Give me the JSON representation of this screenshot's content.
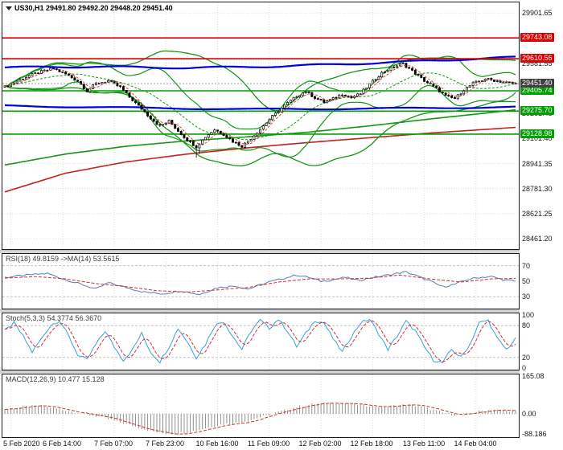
{
  "header": {
    "title": "US30,H1 29491.80 29492.20 29448.20 29451.40"
  },
  "time_axis": {
    "labels": [
      "5 Feb 2020",
      "6 Feb 14:00",
      "7 Feb 07:00",
      "7 Feb 23:00",
      "10 Feb 16:00",
      "11 Feb 09:00",
      "12 Feb 02:00",
      "12 Feb 18:00",
      "13 Feb 11:00",
      "14 Feb 04:00"
    ],
    "tick_bars": [
      2,
      19,
      36,
      53,
      70,
      87,
      104,
      121,
      138,
      155
    ]
  },
  "chart_data": {
    "type": "candlestick",
    "title": "US30,H1",
    "symbol": "US30",
    "timeframe": "H1",
    "ohlc": {
      "open": 29491.8,
      "high": 29492.2,
      "low": 29448.2,
      "close": 29451.4
    },
    "bars": 168,
    "legend_position": "none",
    "grid": true,
    "main": {
      "ylim": [
        28395,
        29970
      ],
      "yticks": [
        29901.65,
        29741.6,
        29581.55,
        29421.5,
        29261.45,
        29101.4,
        28941.35,
        28781.3,
        28621.25,
        28461.2
      ],
      "levels": [
        {
          "value": 29743.08,
          "color": "#e00000",
          "type": "resistance"
        },
        {
          "value": 29610.56,
          "color": "#e00000",
          "type": "resistance"
        },
        {
          "value": 29405.74,
          "color": "#00a000",
          "type": "support"
        },
        {
          "value": 29275.7,
          "color": "#00a000",
          "type": "support"
        },
        {
          "value": 29128.98,
          "color": "#00a000",
          "type": "support"
        }
      ],
      "current_price": 29451.4,
      "price_path": [
        [
          0,
          29430
        ],
        [
          4,
          29468
        ],
        [
          8,
          29502
        ],
        [
          12,
          29528
        ],
        [
          16,
          29548
        ],
        [
          20,
          29512
        ],
        [
          24,
          29468
        ],
        [
          27,
          29405
        ],
        [
          30,
          29452
        ],
        [
          34,
          29470
        ],
        [
          38,
          29428
        ],
        [
          42,
          29345
        ],
        [
          45,
          29290
        ],
        [
          48,
          29232
        ],
        [
          51,
          29180
        ],
        [
          54,
          29212
        ],
        [
          57,
          29150
        ],
        [
          60,
          29092
        ],
        [
          63,
          29048
        ],
        [
          66,
          29112
        ],
        [
          69,
          29158
        ],
        [
          72,
          29128
        ],
        [
          75,
          29082
        ],
        [
          78,
          29052
        ],
        [
          81,
          29102
        ],
        [
          84,
          29162
        ],
        [
          88,
          29242
        ],
        [
          92,
          29312
        ],
        [
          96,
          29372
        ],
        [
          99,
          29402
        ],
        [
          102,
          29362
        ],
        [
          105,
          29332
        ],
        [
          108,
          29356
        ],
        [
          111,
          29386
        ],
        [
          114,
          29362
        ],
        [
          117,
          29388
        ],
        [
          120,
          29448
        ],
        [
          124,
          29520
        ],
        [
          128,
          29560
        ],
        [
          131,
          29578
        ],
        [
          134,
          29532
        ],
        [
          138,
          29470
        ],
        [
          142,
          29420
        ],
        [
          145,
          29372
        ],
        [
          148,
          29356
        ],
        [
          151,
          29412
        ],
        [
          154,
          29452
        ],
        [
          158,
          29482
        ],
        [
          161,
          29472
        ],
        [
          164,
          29462
        ],
        [
          168,
          29451
        ]
      ],
      "blue_ma_upper": [
        [
          0,
          29555
        ],
        [
          30,
          29560
        ],
        [
          60,
          29552
        ],
        [
          90,
          29562
        ],
        [
          120,
          29582
        ],
        [
          145,
          29602
        ],
        [
          168,
          29620
        ]
      ],
      "blue_ma_lower": [
        [
          0,
          29310
        ],
        [
          40,
          29298
        ],
        [
          80,
          29288
        ],
        [
          120,
          29292
        ],
        [
          168,
          29302
        ]
      ],
      "trend_red": [
        [
          0,
          28760
        ],
        [
          20,
          28880
        ],
        [
          40,
          28952
        ],
        [
          60,
          29002
        ],
        [
          80,
          29042
        ],
        [
          100,
          29076
        ],
        [
          120,
          29106
        ],
        [
          140,
          29136
        ],
        [
          168,
          29172
        ]
      ],
      "trend_green": [
        [
          0,
          28932
        ],
        [
          20,
          29002
        ],
        [
          40,
          29052
        ],
        [
          60,
          29086
        ],
        [
          80,
          29112
        ],
        [
          100,
          29142
        ],
        [
          120,
          29182
        ],
        [
          140,
          29226
        ],
        [
          168,
          29284
        ]
      ],
      "colors": {
        "resistance": "#e00000",
        "support": "#00a000",
        "bands": "#139613",
        "blue_ma": "#0000dd",
        "candle_up": "#ffffff",
        "candle_down": "#000000"
      }
    },
    "rsi": {
      "label": "RSI(18) 49.8159  ->MA(14) 53.5615",
      "value": 49.8159,
      "ma_value": 53.5615,
      "ylim": [
        15,
        85
      ],
      "yticks": [
        70,
        50,
        30
      ],
      "path": [
        [
          0,
          55
        ],
        [
          8,
          58
        ],
        [
          14,
          60
        ],
        [
          20,
          52
        ],
        [
          26,
          45
        ],
        [
          30,
          40
        ],
        [
          34,
          48
        ],
        [
          40,
          42
        ],
        [
          46,
          36
        ],
        [
          52,
          34
        ],
        [
          58,
          38
        ],
        [
          64,
          33
        ],
        [
          70,
          42
        ],
        [
          76,
          44
        ],
        [
          80,
          40
        ],
        [
          86,
          48
        ],
        [
          92,
          54
        ],
        [
          96,
          58
        ],
        [
          100,
          55
        ],
        [
          104,
          50
        ],
        [
          108,
          52
        ],
        [
          112,
          55
        ],
        [
          116,
          51
        ],
        [
          120,
          54
        ],
        [
          126,
          58
        ],
        [
          132,
          62
        ],
        [
          136,
          56
        ],
        [
          140,
          50
        ],
        [
          144,
          43
        ],
        [
          148,
          46
        ],
        [
          152,
          52
        ],
        [
          156,
          55
        ],
        [
          160,
          56
        ],
        [
          164,
          52
        ],
        [
          168,
          49.8
        ]
      ],
      "ma": [
        [
          0,
          54
        ],
        [
          10,
          56
        ],
        [
          20,
          53
        ],
        [
          30,
          47
        ],
        [
          40,
          43
        ],
        [
          50,
          38
        ],
        [
          60,
          36
        ],
        [
          70,
          39
        ],
        [
          80,
          42
        ],
        [
          90,
          49
        ],
        [
          100,
          53
        ],
        [
          110,
          53
        ],
        [
          120,
          54
        ],
        [
          130,
          58
        ],
        [
          140,
          53
        ],
        [
          150,
          49
        ],
        [
          160,
          53
        ],
        [
          168,
          53.6
        ]
      ]
    },
    "stoch": {
      "label": "Stoch(5,3,3) 54.3774 56.3670",
      "value": 54.3774,
      "signal_value": 56.367,
      "ylim": [
        -3,
        103
      ],
      "yticks": [
        100,
        80,
        20,
        0
      ],
      "level_lines": [
        80,
        20
      ],
      "path": [
        [
          0,
          70
        ],
        [
          3,
          85
        ],
        [
          6,
          60
        ],
        [
          9,
          30
        ],
        [
          12,
          55
        ],
        [
          15,
          80
        ],
        [
          18,
          90
        ],
        [
          21,
          60
        ],
        [
          24,
          25
        ],
        [
          27,
          15
        ],
        [
          30,
          45
        ],
        [
          33,
          70
        ],
        [
          36,
          40
        ],
        [
          39,
          15
        ],
        [
          42,
          35
        ],
        [
          45,
          65
        ],
        [
          48,
          30
        ],
        [
          51,
          12
        ],
        [
          54,
          40
        ],
        [
          57,
          75
        ],
        [
          60,
          50
        ],
        [
          63,
          20
        ],
        [
          66,
          45
        ],
        [
          69,
          80
        ],
        [
          72,
          88
        ],
        [
          75,
          60
        ],
        [
          78,
          35
        ],
        [
          81,
          70
        ],
        [
          84,
          90
        ],
        [
          87,
          75
        ],
        [
          90,
          92
        ],
        [
          93,
          70
        ],
        [
          96,
          40
        ],
        [
          99,
          65
        ],
        [
          102,
          90
        ],
        [
          105,
          85
        ],
        [
          108,
          55
        ],
        [
          111,
          30
        ],
        [
          114,
          60
        ],
        [
          117,
          85
        ],
        [
          120,
          92
        ],
        [
          123,
          65
        ],
        [
          126,
          35
        ],
        [
          129,
          60
        ],
        [
          132,
          88
        ],
        [
          135,
          70
        ],
        [
          138,
          40
        ],
        [
          141,
          15
        ],
        [
          144,
          10
        ],
        [
          147,
          35
        ],
        [
          150,
          20
        ],
        [
          153,
          45
        ],
        [
          156,
          85
        ],
        [
          159,
          90
        ],
        [
          162,
          55
        ],
        [
          165,
          35
        ],
        [
          168,
          54.4
        ]
      ]
    },
    "macd": {
      "label": "MACD(12,26,9) 10.477 15.128",
      "value": 10.477,
      "signal_value": 15.128,
      "ylim": [
        -102,
        172
      ],
      "yticks": [
        {
          "v": 165.08,
          "t": "165.08"
        },
        {
          "v": 0,
          "t": "0.00"
        },
        {
          "v": -88.186,
          "t": "-88.186"
        }
      ],
      "hist": [
        [
          0,
          20
        ],
        [
          6,
          30
        ],
        [
          12,
          35
        ],
        [
          18,
          20
        ],
        [
          24,
          5
        ],
        [
          28,
          -5
        ],
        [
          32,
          -15
        ],
        [
          36,
          -30
        ],
        [
          40,
          -45
        ],
        [
          44,
          -60
        ],
        [
          48,
          -75
        ],
        [
          52,
          -85
        ],
        [
          56,
          -88
        ],
        [
          60,
          -80
        ],
        [
          64,
          -70
        ],
        [
          68,
          -55
        ],
        [
          72,
          -45
        ],
        [
          76,
          -40
        ],
        [
          80,
          -30
        ],
        [
          84,
          -15
        ],
        [
          88,
          0
        ],
        [
          92,
          15
        ],
        [
          96,
          30
        ],
        [
          100,
          40
        ],
        [
          104,
          45
        ],
        [
          108,
          48
        ],
        [
          112,
          45
        ],
        [
          116,
          40
        ],
        [
          120,
          35
        ],
        [
          124,
          30
        ],
        [
          128,
          35
        ],
        [
          132,
          40
        ],
        [
          136,
          35
        ],
        [
          140,
          20
        ],
        [
          144,
          5
        ],
        [
          148,
          -5
        ],
        [
          152,
          0
        ],
        [
          156,
          10
        ],
        [
          160,
          18
        ],
        [
          164,
          15
        ],
        [
          168,
          10.5
        ]
      ]
    }
  }
}
